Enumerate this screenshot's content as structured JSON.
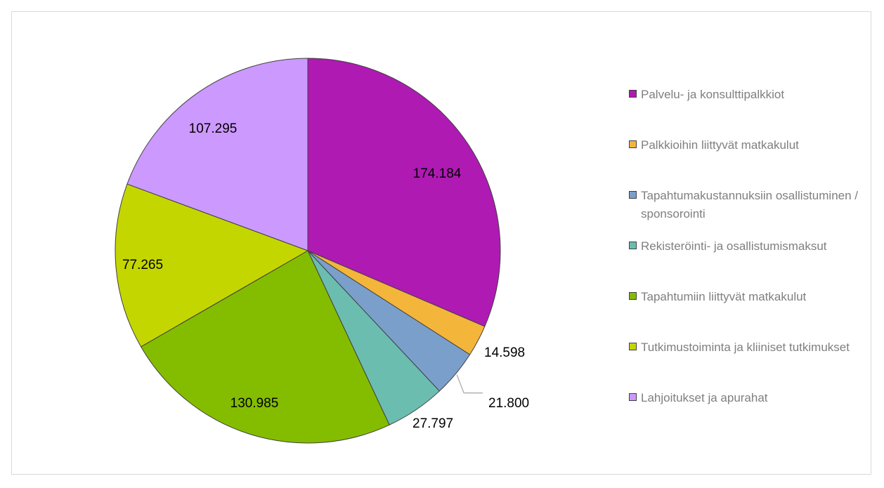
{
  "chart_data": {
    "type": "pie",
    "title": "",
    "start_angle_deg": 0,
    "direction": "clockwise",
    "legend_position": "right",
    "slices": [
      {
        "label": "Palvelu- ja konsulttipalkkiot",
        "value": 174184,
        "display": "174.184",
        "color": "#af1ab3"
      },
      {
        "label": "Palkkioihin liittyvät matkakulut",
        "value": 14598,
        "display": "14.598",
        "color": "#f4b53b"
      },
      {
        "label": "Tapahtumakustannuksiin osallistuminen / sponsorointi",
        "value": 21800,
        "display": "21.800",
        "color": "#7b9fcb"
      },
      {
        "label": "Rekisteröinti- ja osallistumismaksut",
        "value": 27797,
        "display": "27.797",
        "color": "#6bbdb0"
      },
      {
        "label": "Tapahtumiin liittyvät matkakulut",
        "value": 130985,
        "display": "130.985",
        "color": "#84bd00"
      },
      {
        "label": "Tutkimustoiminta ja kliiniset tutkimukset",
        "value": 77265,
        "display": "77.265",
        "color": "#c4d600"
      },
      {
        "label": "Lahjoitukset ja apurahat",
        "value": 107295,
        "display": "107.295",
        "color": "#cc99ff"
      }
    ]
  }
}
